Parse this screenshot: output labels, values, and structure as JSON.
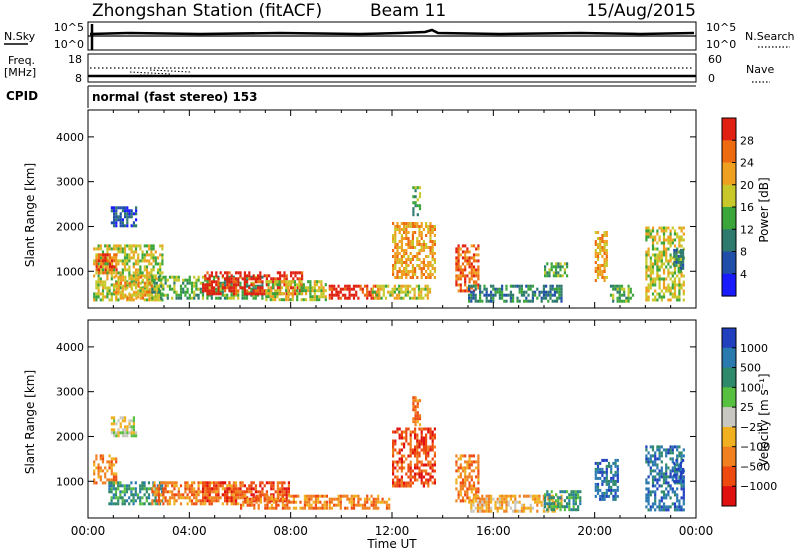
{
  "header": {
    "station": "Zhongshan Station (fitACF)",
    "beam": "Beam 11",
    "date": "15/Aug/2015"
  },
  "top_panels": {
    "nsky_label": "N.Sky",
    "nsky_ticks": [
      "10^5",
      "10^0"
    ],
    "nsearch_label": "N.Search",
    "nsearch_ticks": [
      "10^5",
      "10^0"
    ],
    "freq_label_1": "Freq.",
    "freq_label_2": "[MHz]",
    "freq_ticks": [
      "18",
      "8"
    ],
    "nave_label": "Nave",
    "nave_ticks": [
      "60",
      "0"
    ],
    "cpid_label": "CPID",
    "cpid_value": "normal (fast stereo) 153"
  },
  "chart_data": [
    {
      "type": "heatmap",
      "name": "power-panel",
      "ylabel": "Slant Range [km]",
      "xlabel": "",
      "xlim": [
        0,
        24
      ],
      "ylim": [
        180,
        4600
      ],
      "yticks": [
        "1000",
        "2000",
        "3000",
        "4000"
      ],
      "colorbar_label": "Power [dB]",
      "colorbar_ticks": [
        "4",
        "8",
        "12",
        "16",
        "20",
        "24",
        "28"
      ],
      "colorbar_colors": [
        "#1a1aff",
        "#1f4fa8",
        "#2f7a6e",
        "#3aa63a",
        "#c8c82a",
        "#f0a020",
        "#ee6a10",
        "#e02010"
      ],
      "patches": [
        {
          "t0": 0.2,
          "t1": 3.0,
          "r0": 300,
          "r1": 1600,
          "level": 4
        },
        {
          "t0": 0.9,
          "t1": 2.0,
          "r0": 1950,
          "r1": 2450,
          "level": 1
        },
        {
          "t0": 0.3,
          "t1": 1.2,
          "r0": 900,
          "r1": 1400,
          "level": 6
        },
        {
          "t0": 1.0,
          "t1": 2.6,
          "r0": 300,
          "r1": 900,
          "level": 5
        },
        {
          "t0": 2.5,
          "t1": 7.0,
          "r0": 300,
          "r1": 900,
          "level": 3
        },
        {
          "t0": 4.5,
          "t1": 8.5,
          "r0": 400,
          "r1": 1000,
          "level": 7
        },
        {
          "t0": 7.0,
          "t1": 9.5,
          "r0": 300,
          "r1": 800,
          "level": 4
        },
        {
          "t0": 9.5,
          "t1": 11.5,
          "r0": 300,
          "r1": 700,
          "level": 7
        },
        {
          "t0": 11.2,
          "t1": 13.6,
          "r0": 300,
          "r1": 700,
          "level": 4
        },
        {
          "t0": 12.0,
          "t1": 13.8,
          "r0": 800,
          "r1": 2100,
          "level": 5
        },
        {
          "t0": 12.8,
          "t1": 13.2,
          "r0": 2200,
          "r1": 2900,
          "level": 3
        },
        {
          "t0": 14.5,
          "t1": 15.5,
          "r0": 500,
          "r1": 1600,
          "level": 6
        },
        {
          "t0": 15.0,
          "t1": 18.8,
          "r0": 250,
          "r1": 700,
          "level": 2
        },
        {
          "t0": 18.0,
          "t1": 19.0,
          "r0": 800,
          "r1": 1200,
          "level": 3
        },
        {
          "t0": 20.0,
          "t1": 20.6,
          "r0": 700,
          "r1": 1900,
          "level": 5
        },
        {
          "t0": 20.6,
          "t1": 21.6,
          "r0": 250,
          "r1": 700,
          "level": 3
        },
        {
          "t0": 22.0,
          "t1": 23.6,
          "r0": 300,
          "r1": 2000,
          "level": 4
        },
        {
          "t0": 23.1,
          "t1": 23.6,
          "r0": 900,
          "r1": 1500,
          "level": 2
        }
      ]
    },
    {
      "type": "heatmap",
      "name": "velocity-panel",
      "ylabel": "Slant Range [km]",
      "xlabel": "Time UT",
      "xlim": [
        0,
        24
      ],
      "ylim": [
        180,
        4600
      ],
      "xticks": [
        "00:00",
        "04:00",
        "08:00",
        "12:00",
        "16:00",
        "20:00",
        "00:00"
      ],
      "yticks": [
        "1000",
        "2000",
        "3000",
        "4000"
      ],
      "colorbar_label": "Velocity [m s⁻¹]",
      "colorbar_ticks": [
        "1000",
        "500",
        "100",
        "25",
        "−25",
        "−100",
        "−500",
        "−1000"
      ],
      "colorbar_colors": [
        "#2040c0",
        "#2a7ab0",
        "#2e8a6a",
        "#58c040",
        "#c8c8c0",
        "#f0b020",
        "#f08020",
        "#ee4a10",
        "#e01010"
      ],
      "patches": [
        {
          "t0": 0.2,
          "t1": 1.2,
          "r0": 900,
          "r1": 1600,
          "level": 6
        },
        {
          "t0": 0.8,
          "t1": 3.0,
          "r0": 400,
          "r1": 1000,
          "level": 2
        },
        {
          "t0": 0.9,
          "t1": 2.0,
          "r0": 1950,
          "r1": 2450,
          "level": 4
        },
        {
          "t0": 2.5,
          "t1": 6.0,
          "r0": 400,
          "r1": 1000,
          "level": 6
        },
        {
          "t0": 4.5,
          "t1": 8.0,
          "r0": 500,
          "r1": 1000,
          "level": 7
        },
        {
          "t0": 6.0,
          "t1": 9.5,
          "r0": 300,
          "r1": 700,
          "level": 6
        },
        {
          "t0": 9.5,
          "t1": 12.0,
          "r0": 300,
          "r1": 700,
          "level": 6
        },
        {
          "t0": 12.0,
          "t1": 13.8,
          "r0": 800,
          "r1": 2200,
          "level": 7
        },
        {
          "t0": 12.8,
          "t1": 13.2,
          "r0": 2200,
          "r1": 2900,
          "level": 6
        },
        {
          "t0": 14.5,
          "t1": 15.5,
          "r0": 500,
          "r1": 1600,
          "level": 6
        },
        {
          "t0": 15.0,
          "t1": 18.8,
          "r0": 250,
          "r1": 700,
          "level": 5
        },
        {
          "t0": 18.0,
          "t1": 19.5,
          "r0": 300,
          "r1": 800,
          "level": 2
        },
        {
          "t0": 20.0,
          "t1": 21.0,
          "r0": 500,
          "r1": 1500,
          "level": 1
        },
        {
          "t0": 22.0,
          "t1": 23.6,
          "r0": 300,
          "r1": 1800,
          "level": 1
        },
        {
          "t0": 23.1,
          "t1": 23.6,
          "r0": 900,
          "r1": 1500,
          "level": 0
        }
      ]
    }
  ]
}
